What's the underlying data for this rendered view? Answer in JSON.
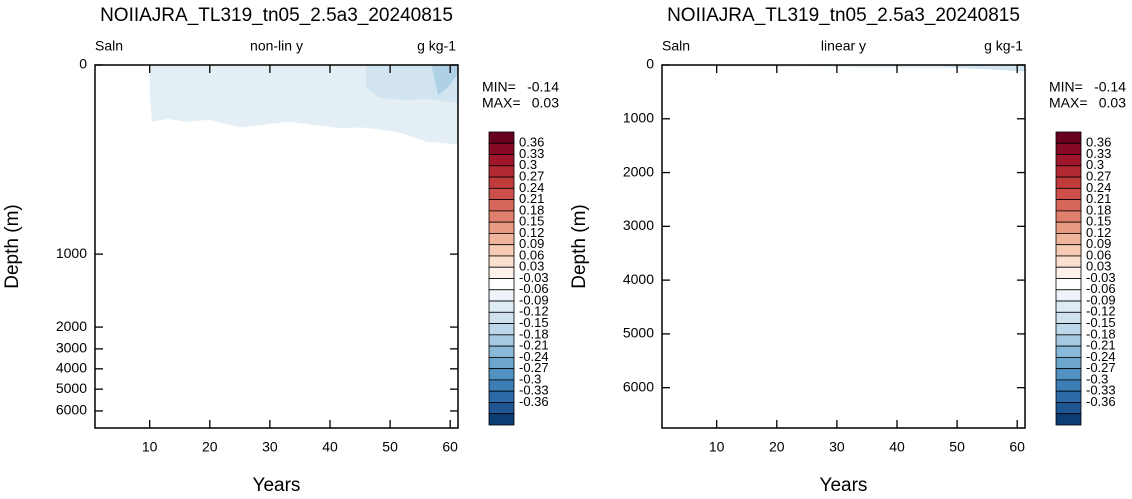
{
  "chart_data": [
    {
      "type": "contour",
      "title": "NOIIAJRA_TL319_tn05_2.5a3_20240815",
      "left_label": "Saln",
      "center_label": "non-lin y",
      "right_label": "g kg-1",
      "xlabel": "Years",
      "ylabel": "Depth (m)",
      "xlim": [
        0.9,
        61.3
      ],
      "xticks": [
        10,
        20,
        30,
        40,
        50,
        60
      ],
      "ylim": [
        0,
        6500
      ],
      "yticks": [
        0,
        1000,
        2000,
        3000,
        4000,
        5000,
        6000
      ],
      "y_scale": "nonlinear",
      "min_label": "MIN=",
      "min": -0.14,
      "max_label": "MAX=",
      "max": 0.03,
      "levels": [
        0.36,
        0.33,
        0.3,
        0.27,
        0.24,
        0.21,
        0.18,
        0.15,
        0.12,
        0.09,
        0.06,
        0.03,
        -0.03,
        -0.06,
        -0.09,
        -0.12,
        -0.15,
        -0.18,
        -0.21,
        -0.24,
        -0.27,
        -0.3,
        -0.33,
        -0.36
      ],
      "colors": [
        "#67001f",
        "#860a25",
        "#a0172c",
        "#b32932",
        "#c13b3c",
        "#cc5049",
        "#d6665a",
        "#e07f6c",
        "#e89a83",
        "#f0b59d",
        "#f6cbb5",
        "#fadfcf",
        "#fdf1e9",
        "#ffffff",
        "#edf3f8",
        "#dfebf3",
        "#cfe2ee",
        "#bcd7e9",
        "#a4c9e1",
        "#89b9d8",
        "#6ca6cd",
        "#5292c2",
        "#3c7db6",
        "#2c69a7",
        "#1f5593",
        "#0c3e74"
      ],
      "fill_regions": [
        {
          "color": "#e4eef5",
          "x": [
            10,
            10.4,
            13,
            16,
            20,
            25,
            28,
            33,
            38,
            42,
            45,
            48,
            52,
            56,
            61.3
          ],
          "depth": [
            150,
            300,
            285,
            300,
            290,
            330,
            320,
            300,
            320,
            335,
            330,
            340,
            360,
            405,
            420
          ]
        },
        {
          "color": "#d2e4ef",
          "x": [
            46,
            48,
            52,
            56,
            59,
            61.3
          ],
          "depth": [
            120,
            170,
            185,
            180,
            190,
            200
          ]
        },
        {
          "color": "#aed1e5",
          "x": [
            57,
            58,
            59.5,
            61,
            61.3
          ],
          "depth": [
            20,
            160,
            120,
            60,
            40
          ]
        }
      ]
    },
    {
      "type": "contour",
      "title": "NOIIAJRA_TL319_tn05_2.5a3_20240815",
      "left_label": "Saln",
      "center_label": "linear y",
      "right_label": "g kg-1",
      "xlabel": "Years",
      "ylabel": "Depth (m)",
      "xlim": [
        0.9,
        61.3
      ],
      "xticks": [
        10,
        20,
        30,
        40,
        50,
        60
      ],
      "ylim": [
        0,
        6750
      ],
      "yticks": [
        0,
        1000,
        2000,
        3000,
        4000,
        5000,
        6000
      ],
      "y_scale": "linear",
      "min_label": "MIN=",
      "min": -0.14,
      "max_label": "MAX=",
      "max": 0.03,
      "levels": [
        0.36,
        0.33,
        0.3,
        0.27,
        0.24,
        0.21,
        0.18,
        0.15,
        0.12,
        0.09,
        0.06,
        0.03,
        -0.03,
        -0.06,
        -0.09,
        -0.12,
        -0.15,
        -0.18,
        -0.21,
        -0.24,
        -0.27,
        -0.3,
        -0.33,
        -0.36
      ],
      "colors": [
        "#67001f",
        "#860a25",
        "#a0172c",
        "#b32932",
        "#c13b3c",
        "#cc5049",
        "#d6665a",
        "#e07f6c",
        "#e89a83",
        "#f0b59d",
        "#f6cbb5",
        "#fadfcf",
        "#fdf1e9",
        "#ffffff",
        "#edf3f8",
        "#dfebf3",
        "#cfe2ee",
        "#bcd7e9",
        "#a4c9e1",
        "#89b9d8",
        "#6ca6cd",
        "#5292c2",
        "#3c7db6",
        "#2c69a7",
        "#1f5593",
        "#0c3e74"
      ],
      "fill_regions": [
        {
          "color": "#e4eef5",
          "x": [
            10,
            30,
            50,
            61.3
          ],
          "depth": [
            30,
            40,
            60,
            100
          ]
        },
        {
          "color": "#d2e4ef",
          "x": [
            48,
            55,
            61.3
          ],
          "depth": [
            40,
            80,
            120
          ]
        }
      ]
    }
  ]
}
